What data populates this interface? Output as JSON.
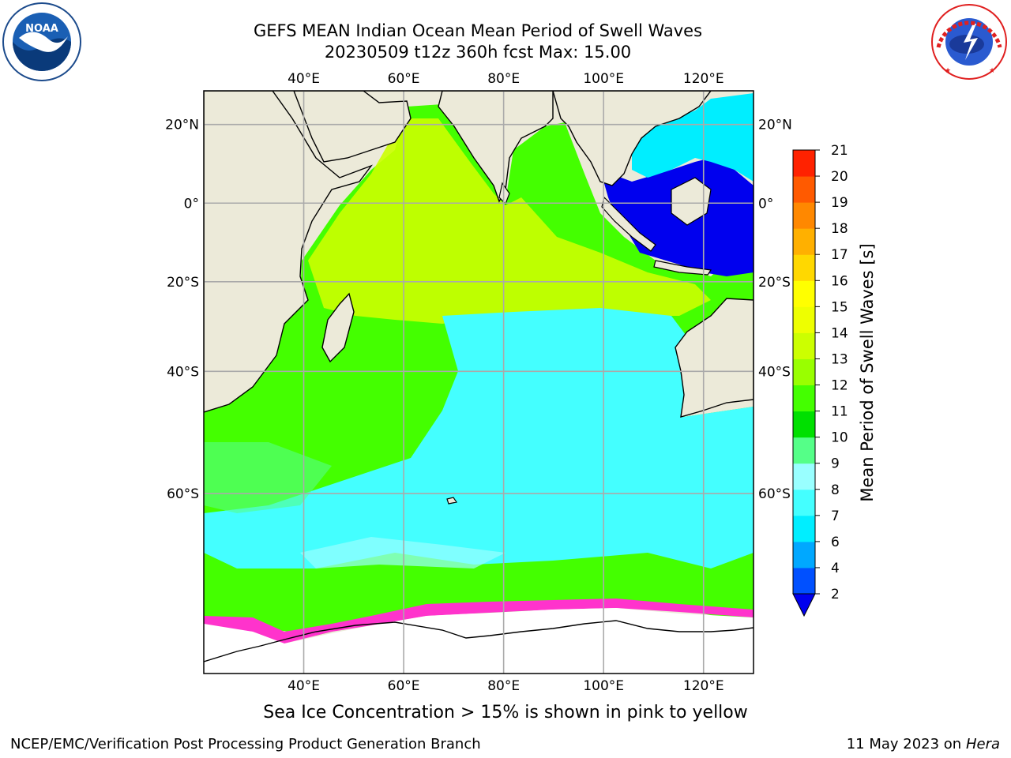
{
  "header": {
    "title_line1": "GEFS MEAN Indian Ocean Mean Period of Swell Waves",
    "title_line2": "20230509 t12z 360h fcst   Max: 15.00"
  },
  "logos": {
    "left": {
      "name": "NOAA",
      "ring_text": "NATIONAL OCEANIC AND ATMOSPHERIC ADMINISTRATION · U.S. DEPARTMENT OF COMMERCE"
    },
    "right": {
      "name": "NATIONAL WEATHER SERVICE"
    }
  },
  "map": {
    "lon_ticks": [
      "40°E",
      "60°E",
      "80°E",
      "100°E",
      "120°E"
    ],
    "lat_ticks": [
      "20°N",
      "0°",
      "20°S",
      "40°S",
      "60°S"
    ],
    "lon_values": [
      40,
      60,
      80,
      100,
      120
    ],
    "lat_values": [
      20,
      0,
      -20,
      -40,
      -60
    ],
    "extent": {
      "lon": [
        20,
        130
      ],
      "lat": [
        -88,
        28
      ]
    }
  },
  "colorbar": {
    "label": "Mean Period of Swell Waves [s]",
    "ticks": [
      "2",
      "4",
      "6",
      "7",
      "8",
      "9",
      "10",
      "11",
      "12",
      "13",
      "14",
      "15",
      "16",
      "17",
      "18",
      "19",
      "20",
      "21"
    ],
    "colors": [
      "#0050ff",
      "#00a8ff",
      "#00eeff",
      "#44ffff",
      "#99ffff",
      "#55ff88",
      "#00e000",
      "#44ff00",
      "#99ff00",
      "#ccff00",
      "#eeff00",
      "#ffff00",
      "#ffd800",
      "#ffb000",
      "#ff8800",
      "#ff5a00",
      "#ff2200"
    ],
    "under_color": "#0000ee"
  },
  "notes": {
    "sea_ice": "Sea Ice Concentration > 15% is shown in pink to yellow"
  },
  "footer": {
    "left": "NCEP/EMC/Verification Post Processing Product Generation Branch",
    "date": "11 May 2023 on",
    "host": "Hera"
  }
}
